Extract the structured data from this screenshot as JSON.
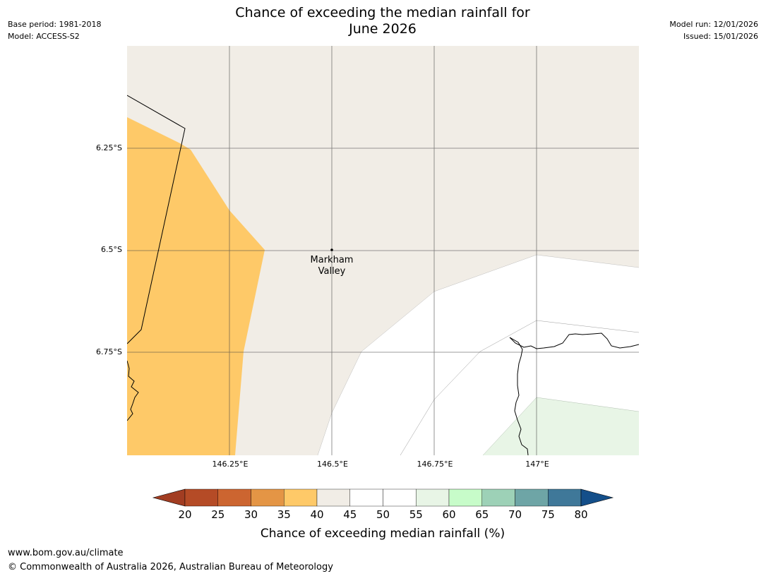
{
  "header": {
    "base_period": "Base period: 1981-2018",
    "model": "Model: ACCESS-S2",
    "title_line1": "Chance of exceeding the median rainfall for",
    "title_line2": "June 2026",
    "model_run": "Model run: 12/01/2026",
    "issued": "Issued: 15/01/2026"
  },
  "map": {
    "latitude_labels": [
      "6.25°S",
      "6.5°S",
      "6.75°S"
    ],
    "longitude_labels": [
      "146.25°E",
      "146.5°E",
      "146.75°E",
      "147°E"
    ],
    "place_name_line1": "Markham",
    "place_name_line2": "Valley",
    "region_categories": [
      "35-40",
      "40-45",
      "45-55",
      "55-60"
    ]
  },
  "legend": {
    "label": "Chance of exceeding median rainfall (%)",
    "ticks": [
      "20",
      "25",
      "30",
      "35",
      "40",
      "45",
      "50",
      "55",
      "60",
      "65",
      "70",
      "75",
      "80"
    ],
    "colors": [
      "#a23d22",
      "#b54b26",
      "#cc6530",
      "#e49545",
      "#fec968",
      "#f1ede6",
      "#ffffff",
      "#ffffff",
      "#e8f5e6",
      "#c7fcc9",
      "#9dd1b7",
      "#6ea5a6",
      "#3f7899",
      "#144f8a"
    ]
  },
  "footer": {
    "url": "www.bom.gov.au/climate",
    "copyright": "© Commonwealth of Australia 2026, Australian Bureau of Meteorology"
  }
}
